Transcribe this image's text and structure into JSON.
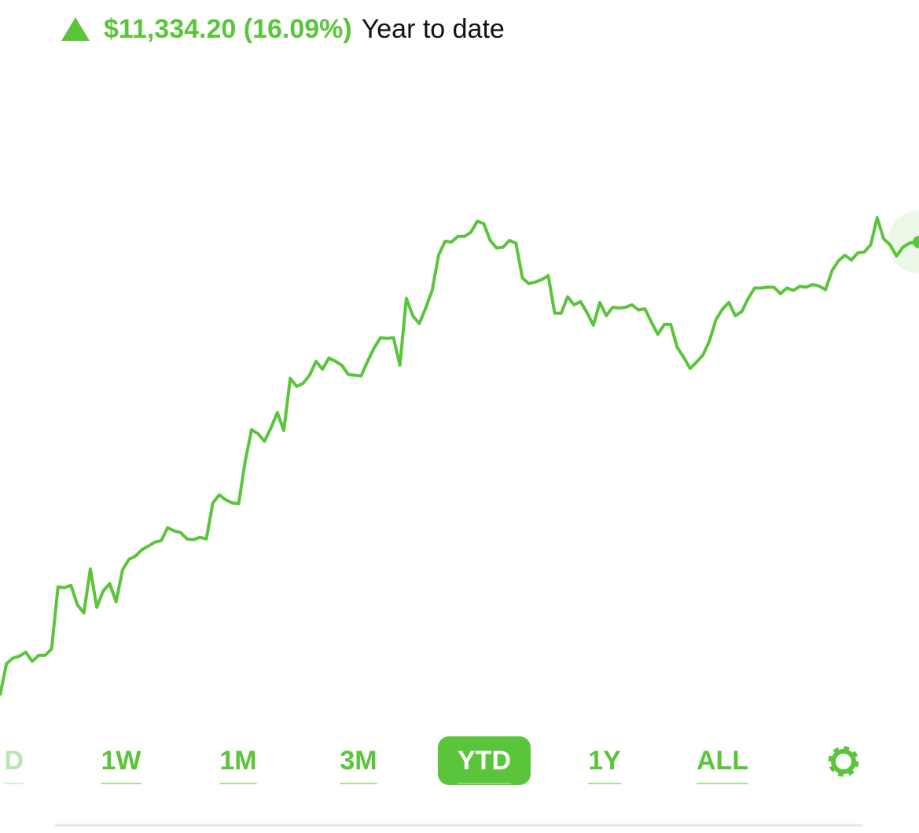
{
  "header": {
    "change": "$11,334.20 (16.09%)",
    "label": "Year to date"
  },
  "chart_data": {
    "type": "line",
    "ylim": [
      69750,
      86640
    ],
    "series": [
      {
        "color": "#5ac53b",
        "values": [
          70440,
          71230,
          71370,
          71420,
          71520,
          71290,
          71440,
          71440,
          71600,
          73150,
          73130,
          73190,
          72700,
          72500,
          73600,
          72640,
          73050,
          73230,
          72780,
          73580,
          73840,
          73920,
          74080,
          74170,
          74270,
          74310,
          74630,
          74550,
          74510,
          74350,
          74330,
          74390,
          74350,
          75250,
          75450,
          75330,
          75250,
          75230,
          76280,
          77080,
          76980,
          76790,
          77120,
          77510,
          77060,
          78360,
          78160,
          78240,
          78440,
          78790,
          78590,
          78870,
          78790,
          78690,
          78460,
          78440,
          78420,
          78790,
          79120,
          79380,
          79360,
          79380,
          78690,
          80360,
          79930,
          79730,
          80120,
          80560,
          81440,
          81790,
          81770,
          81910,
          81910,
          82010,
          82290,
          82230,
          81810,
          81620,
          81640,
          81810,
          81740,
          80870,
          80730,
          80770,
          80830,
          80930,
          79990,
          79990,
          80400,
          80200,
          80280,
          80010,
          79690,
          80260,
          79930,
          80140,
          80120,
          80140,
          80200,
          80070,
          80100,
          79770,
          79460,
          79710,
          79710,
          79140,
          78890,
          78610,
          78770,
          78950,
          79300,
          79830,
          80090,
          80260,
          79930,
          80030,
          80360,
          80620,
          80620,
          80640,
          80640,
          80480,
          80620,
          80560,
          80660,
          80640,
          80710,
          80670,
          80580,
          81050,
          81300,
          81440,
          81320,
          81500,
          81520,
          81700,
          82380,
          81850,
          81700,
          81420,
          81640,
          81740,
          81770
        ]
      }
    ]
  },
  "periods": {
    "items": [
      "D",
      "1W",
      "1M",
      "3M",
      "YTD",
      "1Y",
      "ALL"
    ],
    "selected": 4
  }
}
